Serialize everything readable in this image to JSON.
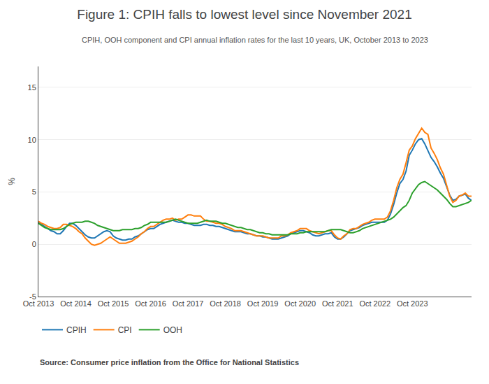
{
  "chart_data": {
    "type": "line",
    "title": "Figure 1: CPIH falls to lowest level since November 2021",
    "subtitle": "CPIH, OOH component and CPI annual inflation rates for the last 10 years, UK, October 2013 to 2023",
    "source": "Source: Consumer price inflation from the Office for National Statistics",
    "y_label": "%",
    "ylim": [
      -5,
      17
    ],
    "yticks": [
      -5,
      0,
      5,
      10,
      15
    ],
    "grid": true,
    "legend": "bottom",
    "categories": [
      "Oct 2013",
      null,
      null,
      null,
      null,
      null,
      null,
      null,
      null,
      null,
      null,
      null,
      "Oct 2014",
      null,
      null,
      null,
      null,
      null,
      null,
      null,
      null,
      null,
      null,
      null,
      "Oct 2015",
      null,
      null,
      null,
      null,
      null,
      null,
      null,
      null,
      null,
      null,
      null,
      "Oct 2016",
      null,
      null,
      null,
      null,
      null,
      null,
      null,
      null,
      null,
      null,
      null,
      "Oct 2017",
      null,
      null,
      null,
      null,
      null,
      null,
      null,
      null,
      null,
      null,
      null,
      "Oct 2018",
      null,
      null,
      null,
      null,
      null,
      null,
      null,
      null,
      null,
      null,
      null,
      "Oct 2019",
      null,
      null,
      null,
      null,
      null,
      null,
      null,
      null,
      null,
      null,
      null,
      "Oct 2020",
      null,
      null,
      null,
      null,
      null,
      null,
      null,
      null,
      null,
      null,
      null,
      "Oct 2021",
      null,
      null,
      null,
      null,
      null,
      null,
      null,
      null,
      null,
      null,
      null,
      "Oct 2022",
      null,
      null,
      null,
      null,
      null,
      null,
      null,
      null,
      null,
      null,
      null,
      "Oct 2023",
      null,
      null,
      null,
      null,
      null,
      null,
      null,
      null,
      null,
      null,
      null,
      null,
      null,
      null,
      null,
      null,
      null,
      null,
      null
    ],
    "series": [
      {
        "name": "CPIH",
        "values": [
          2.1,
          1.9,
          1.7,
          1.5,
          1.3,
          1.2,
          1.0,
          1.0,
          1.3,
          1.7,
          2.0,
          2.0,
          1.8,
          1.5,
          1.2,
          0.9,
          0.7,
          0.6,
          0.6,
          0.8,
          1.0,
          1.2,
          1.3,
          1.2,
          0.8,
          0.6,
          0.5,
          0.4,
          0.4,
          0.5,
          0.5,
          0.7,
          0.8,
          1.0,
          1.2,
          1.4,
          1.5,
          1.5,
          1.7,
          1.9,
          2.0,
          2.1,
          2.2,
          2.3,
          2.2,
          2.1,
          2.1,
          2.0,
          2.0,
          1.9,
          1.8,
          1.8,
          1.8,
          1.9,
          1.9,
          1.8,
          1.8,
          1.7,
          1.7,
          1.6,
          1.5,
          1.4,
          1.3,
          1.2,
          1.2,
          1.2,
          1.1,
          1.0,
          1.0,
          0.9,
          0.8,
          0.8,
          0.7,
          0.7,
          0.6,
          0.5,
          0.5,
          0.5,
          0.6,
          0.7,
          0.8,
          1.0,
          1.1,
          1.2,
          1.3,
          1.3,
          1.2,
          1.1,
          0.9,
          0.8,
          0.8,
          0.9,
          1.0,
          1.0,
          1.1,
          0.7,
          0.5,
          0.5,
          0.7,
          1.0,
          1.3,
          1.4,
          1.5,
          1.6,
          1.8,
          1.9,
          2.0,
          2.1,
          2.1,
          2.1,
          2.1,
          2.1,
          2.3,
          2.9,
          3.8,
          4.9,
          5.8,
          6.2,
          7.0,
          8.5,
          9.0,
          9.6,
          10.0,
          10.1,
          9.6,
          8.9,
          8.3,
          7.9,
          7.4,
          6.8,
          6.3,
          5.5,
          4.7,
          4.2,
          4.3,
          4.6,
          4.7,
          4.8,
          4.4,
          4.2
        ]
      },
      {
        "name": "CPI",
        "values": [
          2.2,
          2.0,
          1.9,
          1.7,
          1.6,
          1.5,
          1.5,
          1.6,
          1.9,
          1.9,
          1.8,
          1.7,
          1.5,
          1.2,
          1.0,
          0.6,
          0.3,
          0.0,
          -0.1,
          0.0,
          0.1,
          0.3,
          0.5,
          0.7,
          0.5,
          0.3,
          0.1,
          0.1,
          0.1,
          0.2,
          0.3,
          0.5,
          0.7,
          1.0,
          1.2,
          1.5,
          1.7,
          1.7,
          1.9,
          2.1,
          2.3,
          2.4,
          2.4,
          2.5,
          2.3,
          2.4,
          2.4,
          2.6,
          2.8,
          2.8,
          2.7,
          2.7,
          2.7,
          2.4,
          2.2,
          2.2,
          2.1,
          2.0,
          2.0,
          1.9,
          1.7,
          1.6,
          1.5,
          1.3,
          1.3,
          1.3,
          1.2,
          1.1,
          1.0,
          0.9,
          0.8,
          0.8,
          0.8,
          0.7,
          0.6,
          0.6,
          0.6,
          0.6,
          0.8,
          0.8,
          0.9,
          1.1,
          1.2,
          1.3,
          1.5,
          1.5,
          1.5,
          1.3,
          1.2,
          1.1,
          1.0,
          1.1,
          1.2,
          1.3,
          1.3,
          0.9,
          0.6,
          0.5,
          0.8,
          1.0,
          1.4,
          1.5,
          1.5,
          1.7,
          1.9,
          2.0,
          2.1,
          2.3,
          2.4,
          2.4,
          2.4,
          2.4,
          2.6,
          3.2,
          4.2,
          5.4,
          6.2,
          6.7,
          7.8,
          9.0,
          9.4,
          10.1,
          10.6,
          11.1,
          10.7,
          10.5,
          9.2,
          8.7,
          8.1,
          7.3,
          6.7,
          5.7,
          4.6,
          4.0,
          4.2,
          4.6,
          4.7,
          4.9,
          4.6,
          4.6
        ]
      },
      {
        "name": "OOH",
        "values": [
          2.0,
          1.8,
          1.6,
          1.5,
          1.4,
          1.4,
          1.4,
          1.4,
          1.5,
          1.7,
          1.9,
          2.0,
          2.1,
          2.1,
          2.1,
          2.2,
          2.2,
          2.1,
          2.0,
          1.8,
          1.7,
          1.6,
          1.5,
          1.4,
          1.3,
          1.3,
          1.3,
          1.4,
          1.4,
          1.4,
          1.4,
          1.5,
          1.5,
          1.6,
          1.8,
          1.9,
          2.1,
          2.1,
          2.1,
          2.1,
          2.1,
          2.1,
          2.2,
          2.3,
          2.4,
          2.3,
          2.2,
          2.1,
          2.0,
          2.0,
          2.0,
          2.0,
          2.1,
          2.2,
          2.3,
          2.2,
          2.2,
          2.2,
          2.1,
          2.0,
          2.0,
          1.9,
          1.8,
          1.7,
          1.6,
          1.6,
          1.5,
          1.4,
          1.4,
          1.3,
          1.2,
          1.1,
          1.1,
          1.0,
          1.0,
          0.9,
          0.9,
          0.9,
          0.9,
          0.9,
          0.9,
          1.0,
          1.0,
          1.0,
          1.1,
          1.1,
          1.2,
          1.2,
          1.2,
          1.2,
          1.2,
          1.2,
          1.2,
          1.3,
          1.4,
          1.4,
          1.4,
          1.4,
          1.3,
          1.2,
          1.1,
          1.1,
          1.2,
          1.3,
          1.5,
          1.6,
          1.7,
          1.8,
          1.9,
          2.0,
          2.1,
          2.2,
          2.3,
          2.4,
          2.6,
          2.9,
          3.2,
          3.5,
          3.7,
          4.2,
          4.9,
          5.3,
          5.7,
          5.9,
          6.0,
          5.8,
          5.6,
          5.4,
          5.2,
          4.9,
          4.6,
          4.3,
          3.9,
          3.6,
          3.6,
          3.7,
          3.8,
          3.9,
          4.0,
          4.2
        ]
      }
    ]
  }
}
